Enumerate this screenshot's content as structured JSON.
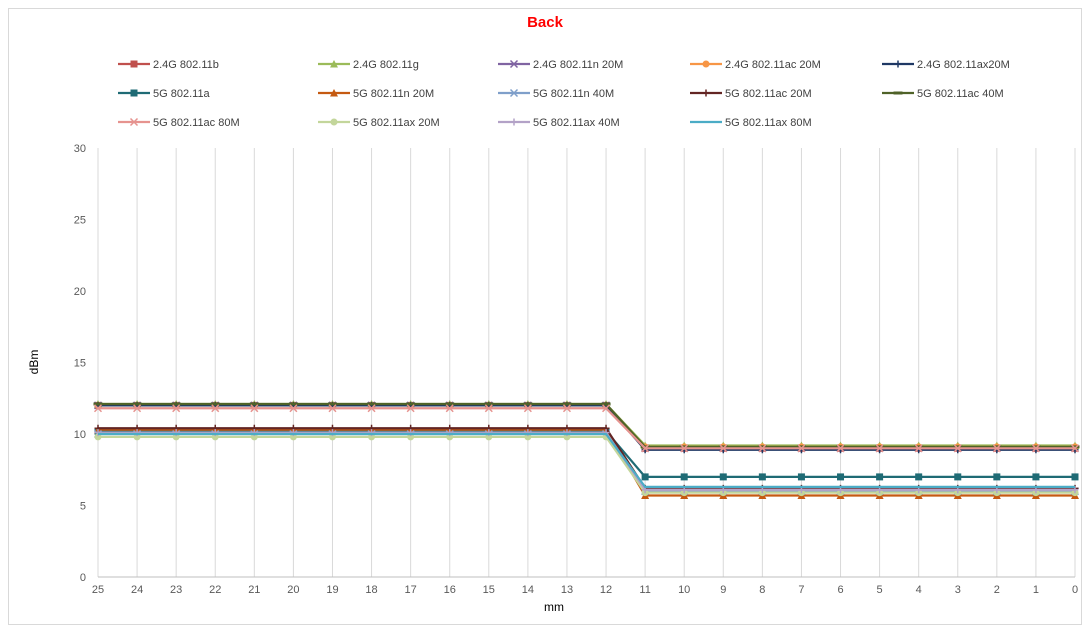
{
  "chart_data": {
    "type": "line",
    "title": "Back",
    "xlabel": "mm",
    "ylabel": "dBm",
    "ylim": [
      0,
      30
    ],
    "yticks": [
      "0",
      "5",
      "10",
      "15",
      "20",
      "25",
      "30"
    ],
    "categories": [
      "25",
      "24",
      "23",
      "22",
      "21",
      "20",
      "19",
      "18",
      "17",
      "16",
      "15",
      "14",
      "13",
      "12",
      "11",
      "10",
      "9",
      "8",
      "7",
      "6",
      "5",
      "4",
      "3",
      "2",
      "1",
      "0"
    ],
    "grid": "vertical",
    "legend_position": "top",
    "series": [
      {
        "name": "2.4G 802.11b",
        "color": "#c0504d",
        "marker": "square",
        "values": [
          12,
          12,
          12,
          12,
          12,
          12,
          12,
          12,
          12,
          12,
          12,
          12,
          12,
          12,
          9,
          9,
          9,
          9,
          9,
          9,
          9,
          9,
          9,
          9,
          9,
          9
        ]
      },
      {
        "name": "2.4G 802.11g",
        "color": "#9bbb59",
        "marker": "triangle",
        "values": [
          12.1,
          12.1,
          12.1,
          12.1,
          12.1,
          12.1,
          12.1,
          12.1,
          12.1,
          12.1,
          12.1,
          12.1,
          12.1,
          12.1,
          9.2,
          9.2,
          9.2,
          9.2,
          9.2,
          9.2,
          9.2,
          9.2,
          9.2,
          9.2,
          9.2,
          9.2
        ]
      },
      {
        "name": "2.4G 802.11n 20M",
        "color": "#8064a2",
        "marker": "x",
        "values": [
          12,
          12,
          12,
          12,
          12,
          12,
          12,
          12,
          12,
          12,
          12,
          12,
          12,
          12,
          9,
          9,
          9,
          9,
          9,
          9,
          9,
          9,
          9,
          9,
          9,
          9
        ]
      },
      {
        "name": "2.4G 802.11ac 20M",
        "color": "#f79646",
        "marker": "circle",
        "values": [
          12,
          12,
          12,
          12,
          12,
          12,
          12,
          12,
          12,
          12,
          12,
          12,
          12,
          12,
          9.1,
          9.1,
          9.1,
          9.1,
          9.1,
          9.1,
          9.1,
          9.1,
          9.1,
          9.1,
          9.1,
          9.1
        ]
      },
      {
        "name": "2.4G 802.11ax20M",
        "color": "#1f3864",
        "marker": "plus",
        "values": [
          12,
          12,
          12,
          12,
          12,
          12,
          12,
          12,
          12,
          12,
          12,
          12,
          12,
          12,
          8.9,
          8.9,
          8.9,
          8.9,
          8.9,
          8.9,
          8.9,
          8.9,
          8.9,
          8.9,
          8.9,
          8.9
        ]
      },
      {
        "name": "5G 802.11a",
        "color": "#1f6b75",
        "marker": "square",
        "values": [
          10.2,
          10.2,
          10.2,
          10.2,
          10.2,
          10.2,
          10.2,
          10.2,
          10.2,
          10.2,
          10.2,
          10.2,
          10.2,
          10.2,
          7,
          7,
          7,
          7,
          7,
          7,
          7,
          7,
          7,
          7,
          7,
          7
        ]
      },
      {
        "name": "5G 802.11n 20M",
        "color": "#c55a11",
        "marker": "triangle",
        "values": [
          10.3,
          10.3,
          10.3,
          10.3,
          10.3,
          10.3,
          10.3,
          10.3,
          10.3,
          10.3,
          10.3,
          10.3,
          10.3,
          10.3,
          5.7,
          5.7,
          5.7,
          5.7,
          5.7,
          5.7,
          5.7,
          5.7,
          5.7,
          5.7,
          5.7,
          5.7
        ]
      },
      {
        "name": "5G 802.11n 40M",
        "color": "#7f9fca",
        "marker": "x",
        "values": [
          10,
          10,
          10,
          10,
          10,
          10,
          10,
          10,
          10,
          10,
          10,
          10,
          10,
          10,
          6,
          6,
          6,
          6,
          6,
          6,
          6,
          6,
          6,
          6,
          6,
          6
        ]
      },
      {
        "name": "5G 802.11ac 20M",
        "color": "#632523",
        "marker": "plus",
        "values": [
          10.4,
          10.4,
          10.4,
          10.4,
          10.4,
          10.4,
          10.4,
          10.4,
          10.4,
          10.4,
          10.4,
          10.4,
          10.4,
          10.4,
          6.2,
          6.2,
          6.2,
          6.2,
          6.2,
          6.2,
          6.2,
          6.2,
          6.2,
          6.2,
          6.2,
          6.2
        ]
      },
      {
        "name": "5G 802.11ac 40M",
        "color": "#4f6228",
        "marker": "dash",
        "values": [
          12.1,
          12.1,
          12.1,
          12.1,
          12.1,
          12.1,
          12.1,
          12.1,
          12.1,
          12.1,
          12.1,
          12.1,
          12.1,
          12.1,
          9.1,
          9.1,
          9.1,
          9.1,
          9.1,
          9.1,
          9.1,
          9.1,
          9.1,
          9.1,
          9.1,
          9.1
        ]
      },
      {
        "name": "5G 802.11ac 80M",
        "color": "#e6938f",
        "marker": "x",
        "values": [
          11.8,
          11.8,
          11.8,
          11.8,
          11.8,
          11.8,
          11.8,
          11.8,
          11.8,
          11.8,
          11.8,
          11.8,
          11.8,
          11.8,
          9,
          9,
          9,
          9,
          9,
          9,
          9,
          9,
          9,
          9,
          9,
          9
        ]
      },
      {
        "name": "5G 802.11ax 20M",
        "color": "#c3d69b",
        "marker": "circle",
        "values": [
          9.8,
          9.8,
          9.8,
          9.8,
          9.8,
          9.8,
          9.8,
          9.8,
          9.8,
          9.8,
          9.8,
          9.8,
          9.8,
          9.8,
          5.9,
          5.9,
          5.9,
          5.9,
          5.9,
          5.9,
          5.9,
          5.9,
          5.9,
          5.9,
          5.9,
          5.9
        ]
      },
      {
        "name": "5G 802.11ax 40M",
        "color": "#b3a2c7",
        "marker": "plus",
        "values": [
          10.1,
          10.1,
          10.1,
          10.1,
          10.1,
          10.1,
          10.1,
          10.1,
          10.1,
          10.1,
          10.1,
          10.1,
          10.1,
          10.1,
          6.1,
          6.1,
          6.1,
          6.1,
          6.1,
          6.1,
          6.1,
          6.1,
          6.1,
          6.1,
          6.1,
          6.1
        ]
      },
      {
        "name": "5G 802.11ax 80M",
        "color": "#4bacc6",
        "marker": "none",
        "values": [
          10,
          10,
          10,
          10,
          10,
          10,
          10,
          10,
          10,
          10,
          10,
          10,
          10,
          10,
          6.3,
          6.3,
          6.3,
          6.3,
          6.3,
          6.3,
          6.3,
          6.3,
          6.3,
          6.3,
          6.3,
          6.3
        ]
      }
    ]
  }
}
